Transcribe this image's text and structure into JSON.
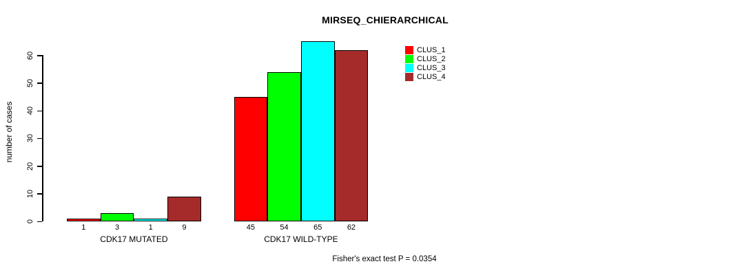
{
  "chart_data": {
    "type": "bar",
    "title": "MIRSEQ_CHIERARCHICAL",
    "ylabel": "number of cases",
    "xlabel": "",
    "footer_annotation": "Fisher's exact test P = 0.0354",
    "groups": [
      {
        "label": "CDK17 MUTATED"
      },
      {
        "label": "CDK17 WILD-TYPE"
      }
    ],
    "series": [
      {
        "name": "CLUS_1",
        "color": "#ff0000",
        "values": [
          1,
          45
        ]
      },
      {
        "name": "CLUS_2",
        "color": "#00ff00",
        "values": [
          3,
          54
        ]
      },
      {
        "name": "CLUS_3",
        "color": "#00ffff",
        "values": [
          1,
          65
        ]
      },
      {
        "name": "CLUS_4",
        "color": "#a52a2a",
        "values": [
          9,
          62
        ]
      }
    ],
    "yticks": [
      0,
      10,
      20,
      30,
      40,
      50,
      60
    ],
    "ylim": [
      0,
      65
    ],
    "bar_value_labels": true,
    "grid": false,
    "legend_position": "top-right"
  }
}
